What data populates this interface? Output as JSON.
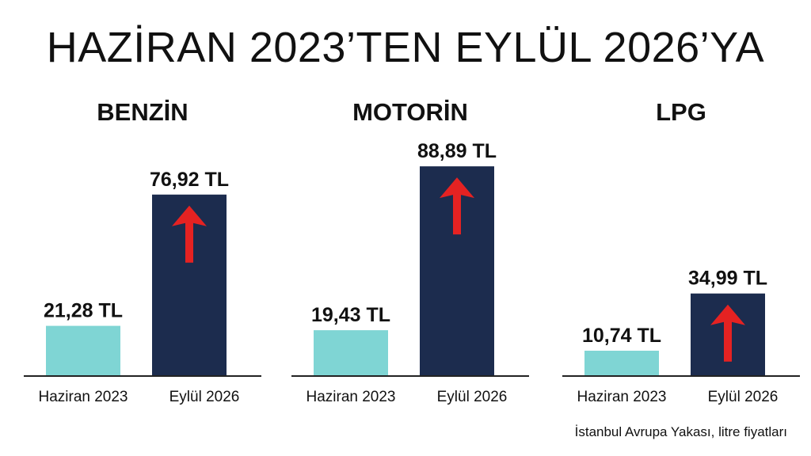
{
  "title": "HAZİRAN 2023’TEN EYLÜL 2026’YA",
  "source_note": "İstanbul Avrupa Yakası, litre fiyatları",
  "colors": {
    "before_bar": "#7fd5d4",
    "after_bar": "#1c2c4e",
    "arrow": "#e52222",
    "axis": "#222222"
  },
  "chart_data": [
    {
      "type": "bar",
      "title": "BENZİN",
      "categories": [
        "Haziran 2023",
        "Eylül 2026"
      ],
      "values": [
        21.28,
        76.92
      ],
      "value_labels": [
        "21,28 TL",
        "76,92 TL"
      ],
      "ylim": [
        0,
        100
      ],
      "arrow_on": "Eylül 2026"
    },
    {
      "type": "bar",
      "title": "MOTORİN",
      "categories": [
        "Haziran 2023",
        "Eylül 2026"
      ],
      "values": [
        19.43,
        88.89
      ],
      "value_labels": [
        "19,43 TL",
        "88,89 TL"
      ],
      "ylim": [
        0,
        100
      ],
      "arrow_on": "Eylül 2026"
    },
    {
      "type": "bar",
      "title": "LPG",
      "categories": [
        "Haziran 2023",
        "Eylül 2026"
      ],
      "values": [
        10.74,
        34.99
      ],
      "value_labels": [
        "10,74 TL",
        "34,99 TL"
      ],
      "ylim": [
        0,
        100
      ],
      "arrow_on": "Eylül 2026"
    }
  ]
}
